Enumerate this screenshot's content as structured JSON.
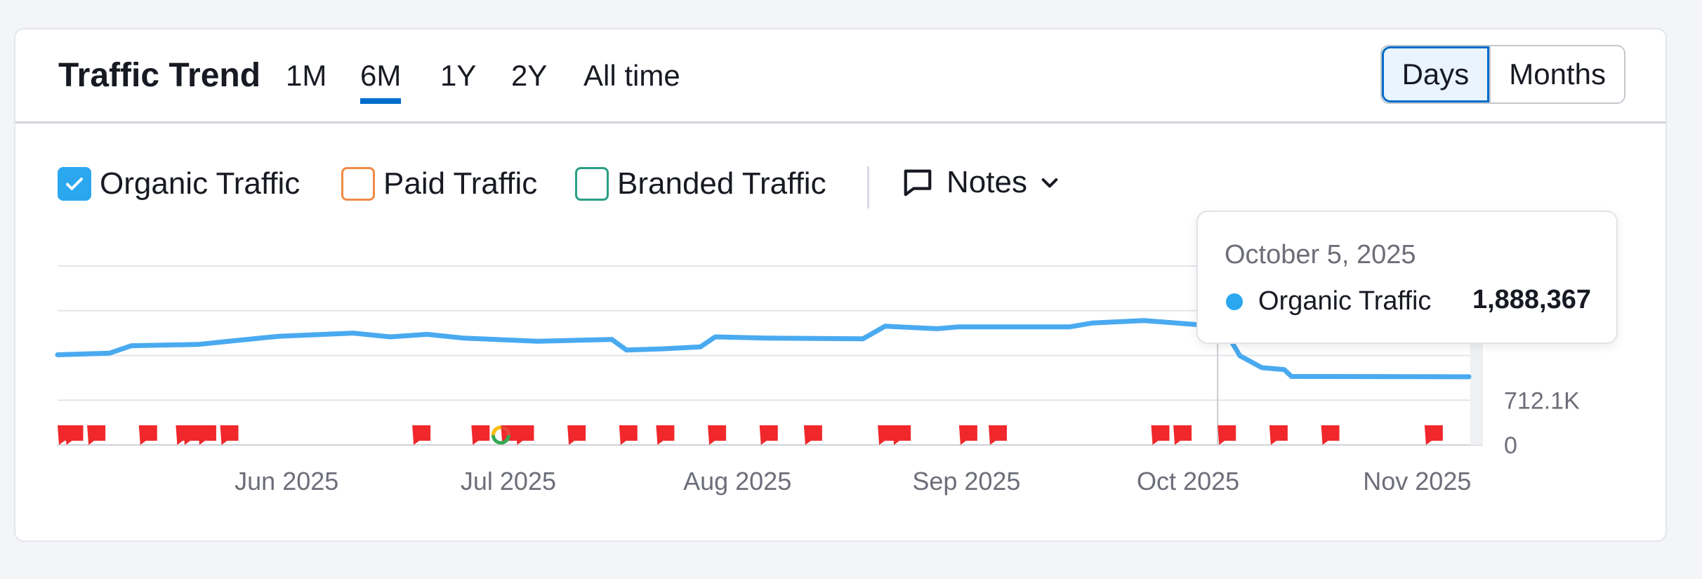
{
  "header": {
    "title": "Traffic Trend",
    "periods": [
      "1M",
      "6M",
      "1Y",
      "2Y",
      "All time"
    ],
    "active_period": "6M",
    "granularity": [
      "Days",
      "Months"
    ],
    "active_granularity": "Days"
  },
  "legend": {
    "organic": "Organic Traffic",
    "paid": "Paid Traffic",
    "branded": "Branded Traffic",
    "notes": "Notes"
  },
  "colors": {
    "organic": "#4aaaf0",
    "paid": "#ef8b47",
    "branded": "#2a9d85",
    "accent": "#006dca",
    "flag": "#f0282c"
  },
  "tooltip": {
    "date": "October 5, 2025",
    "series": "Organic Traffic",
    "value": "1,888,367"
  },
  "chart_data": {
    "type": "line",
    "series": [
      {
        "name": "Organic Traffic",
        "values": [
          [
            "2025-05-01",
            1435000
          ],
          [
            "2025-05-08",
            1460000
          ],
          [
            "2025-05-11",
            1580000
          ],
          [
            "2025-05-20",
            1600000
          ],
          [
            "2025-05-25",
            1660000
          ],
          [
            "2025-05-31",
            1730000
          ],
          [
            "2025-06-10",
            1780000
          ],
          [
            "2025-06-15",
            1720000
          ],
          [
            "2025-06-20",
            1760000
          ],
          [
            "2025-06-25",
            1700000
          ],
          [
            "2025-07-05",
            1650000
          ],
          [
            "2025-07-15",
            1680000
          ],
          [
            "2025-07-17",
            1510000
          ],
          [
            "2025-07-22",
            1530000
          ],
          [
            "2025-07-27",
            1560000
          ],
          [
            "2025-07-29",
            1720000
          ],
          [
            "2025-08-05",
            1700000
          ],
          [
            "2025-08-18",
            1690000
          ],
          [
            "2025-08-21",
            1890000
          ],
          [
            "2025-08-28",
            1850000
          ],
          [
            "2025-08-31",
            1880000
          ],
          [
            "2025-09-15",
            1880000
          ],
          [
            "2025-09-18",
            1940000
          ],
          [
            "2025-09-25",
            1980000
          ],
          [
            "2025-10-05",
            1888367
          ],
          [
            "2025-10-06",
            1820000
          ],
          [
            "2025-10-08",
            1420000
          ],
          [
            "2025-10-11",
            1230000
          ],
          [
            "2025-10-14",
            1200000
          ],
          [
            "2025-10-15",
            1090000
          ],
          [
            "2025-11-08",
            1085000
          ]
        ]
      }
    ],
    "x_tick_labels": [
      "Jun 2025",
      "Jul 2025",
      "Aug 2025",
      "Sep 2025",
      "Oct 2025",
      "Nov 2025"
    ],
    "y_tick_labels": [
      "712.1K",
      "0"
    ],
    "grid": true,
    "annotation_flag_dates": [
      "2025-05-01",
      "2025-05-02",
      "2025-05-05",
      "2025-05-12",
      "2025-05-17",
      "2025-05-18",
      "2025-05-20",
      "2025-05-23",
      "2025-06-18",
      "2025-06-26",
      "2025-06-30",
      "2025-07-02",
      "2025-07-09",
      "2025-07-16",
      "2025-07-21",
      "2025-07-28",
      "2025-08-04",
      "2025-08-10",
      "2025-08-20",
      "2025-08-22",
      "2025-08-31",
      "2025-09-04",
      "2025-09-26",
      "2025-09-29",
      "2025-10-05",
      "2025-10-12",
      "2025-10-19",
      "2025-11-02"
    ],
    "google_update_dates": [
      "2025-06-30"
    ],
    "hover_date": "2025-10-05"
  }
}
